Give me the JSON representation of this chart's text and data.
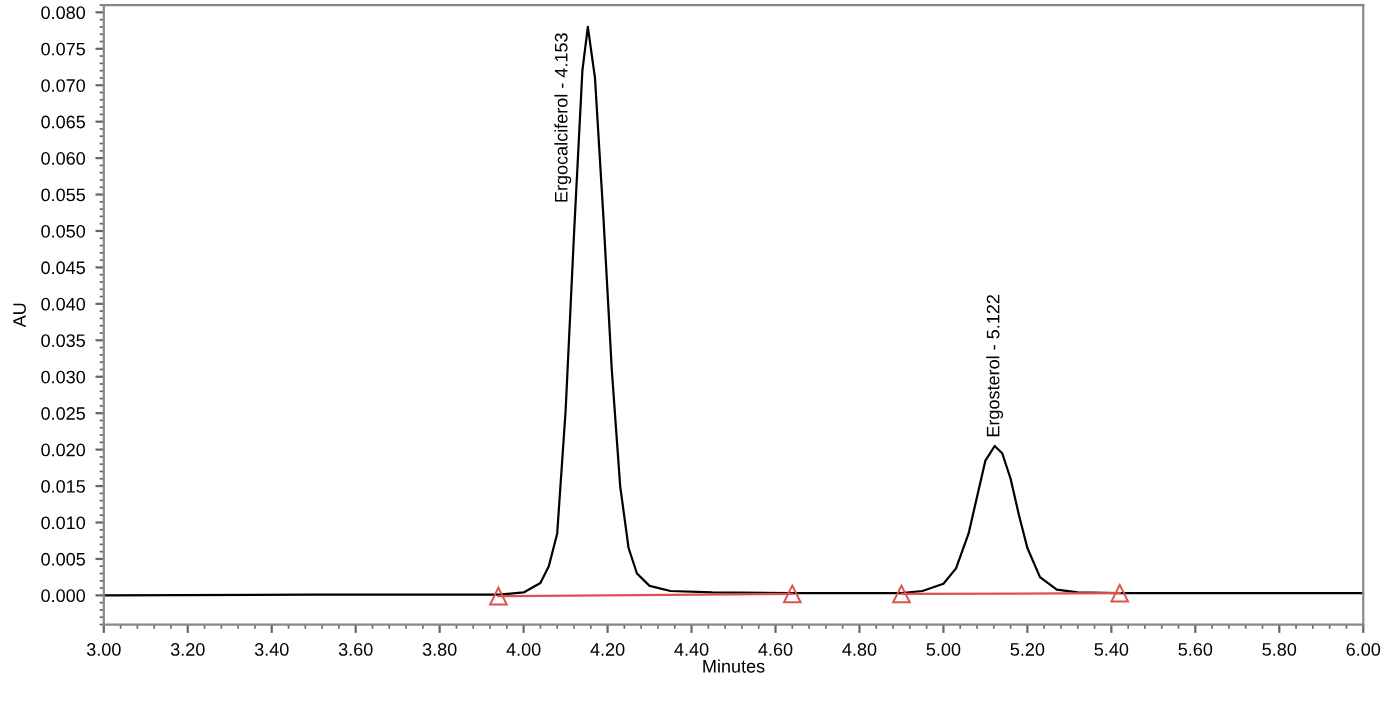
{
  "chart_data": {
    "type": "line",
    "xlabel": "Minutes",
    "ylabel": "AU",
    "xlim": [
      3.0,
      6.0
    ],
    "ylim": [
      -0.004,
      0.081
    ],
    "xticks": [
      {
        "value": 3.0,
        "label": "3.00"
      },
      {
        "value": 3.2,
        "label": "3.20"
      },
      {
        "value": 3.4,
        "label": "3.40"
      },
      {
        "value": 3.6,
        "label": "3.60"
      },
      {
        "value": 3.8,
        "label": "3.80"
      },
      {
        "value": 4.0,
        "label": "4.00"
      },
      {
        "value": 4.2,
        "label": "4.20"
      },
      {
        "value": 4.4,
        "label": "4.40"
      },
      {
        "value": 4.6,
        "label": "4.60"
      },
      {
        "value": 4.8,
        "label": "4.80"
      },
      {
        "value": 5.0,
        "label": "5.00"
      },
      {
        "value": 5.2,
        "label": "5.20"
      },
      {
        "value": 5.4,
        "label": "5.40"
      },
      {
        "value": 5.6,
        "label": "5.60"
      },
      {
        "value": 5.8,
        "label": "5.80"
      },
      {
        "value": 6.0,
        "label": "6.00"
      }
    ],
    "yticks": [
      {
        "value": 0.0,
        "label": "0.000"
      },
      {
        "value": 0.005,
        "label": "0.005"
      },
      {
        "value": 0.01,
        "label": "0.010"
      },
      {
        "value": 0.015,
        "label": "0.015"
      },
      {
        "value": 0.02,
        "label": "0.020"
      },
      {
        "value": 0.025,
        "label": "0.025"
      },
      {
        "value": 0.03,
        "label": "0.030"
      },
      {
        "value": 0.035,
        "label": "0.035"
      },
      {
        "value": 0.04,
        "label": "0.040"
      },
      {
        "value": 0.045,
        "label": "0.045"
      },
      {
        "value": 0.05,
        "label": "0.050"
      },
      {
        "value": 0.055,
        "label": "0.055"
      },
      {
        "value": 0.06,
        "label": "0.060"
      },
      {
        "value": 0.065,
        "label": "0.065"
      },
      {
        "value": 0.07,
        "label": "0.070"
      },
      {
        "value": 0.075,
        "label": "0.075"
      },
      {
        "value": 0.08,
        "label": "0.080"
      }
    ],
    "grid": false,
    "legend": false,
    "series": [
      {
        "color": "#000000",
        "marker": "none",
        "line_style": "solid",
        "x": [
          3.0,
          3.5,
          3.94,
          4.0,
          4.04,
          4.06,
          4.08,
          4.1,
          4.12,
          4.14,
          4.153,
          4.17,
          4.19,
          4.21,
          4.23,
          4.25,
          4.27,
          4.3,
          4.35,
          4.45,
          4.64,
          4.9,
          4.95,
          5.0,
          5.03,
          5.06,
          5.08,
          5.1,
          5.122,
          5.14,
          5.16,
          5.18,
          5.2,
          5.23,
          5.27,
          5.32,
          5.42,
          6.0
        ],
        "values": [
          0.0,
          0.0001,
          0.0001,
          0.0004,
          0.0017,
          0.004,
          0.0085,
          0.0253,
          0.0495,
          0.072,
          0.078,
          0.071,
          0.052,
          0.031,
          0.015,
          0.0065,
          0.003,
          0.0013,
          0.0006,
          0.0004,
          0.0003,
          0.0003,
          0.0006,
          0.0016,
          0.0037,
          0.0085,
          0.0135,
          0.0185,
          0.0205,
          0.0195,
          0.016,
          0.011,
          0.0065,
          0.0025,
          0.0008,
          0.0004,
          0.0003,
          0.0003
        ]
      },
      {
        "color": "#d9534f",
        "marker": "triangle",
        "line_style": "solid",
        "x": [
          3.94,
          4.64
        ],
        "values": [
          -0.0001,
          0.0002
        ]
      },
      {
        "color": "#d9534f",
        "marker": "triangle",
        "line_style": "solid",
        "x": [
          4.9,
          5.42
        ],
        "values": [
          0.0002,
          0.0003
        ]
      }
    ],
    "annotations": [
      {
        "text": "Ergocalciferol - 4.153",
        "x": 4.153,
        "y": 0.078
      },
      {
        "text": "Ergosterol - 5.122",
        "x": 5.122,
        "y": 0.0205
      }
    ]
  }
}
